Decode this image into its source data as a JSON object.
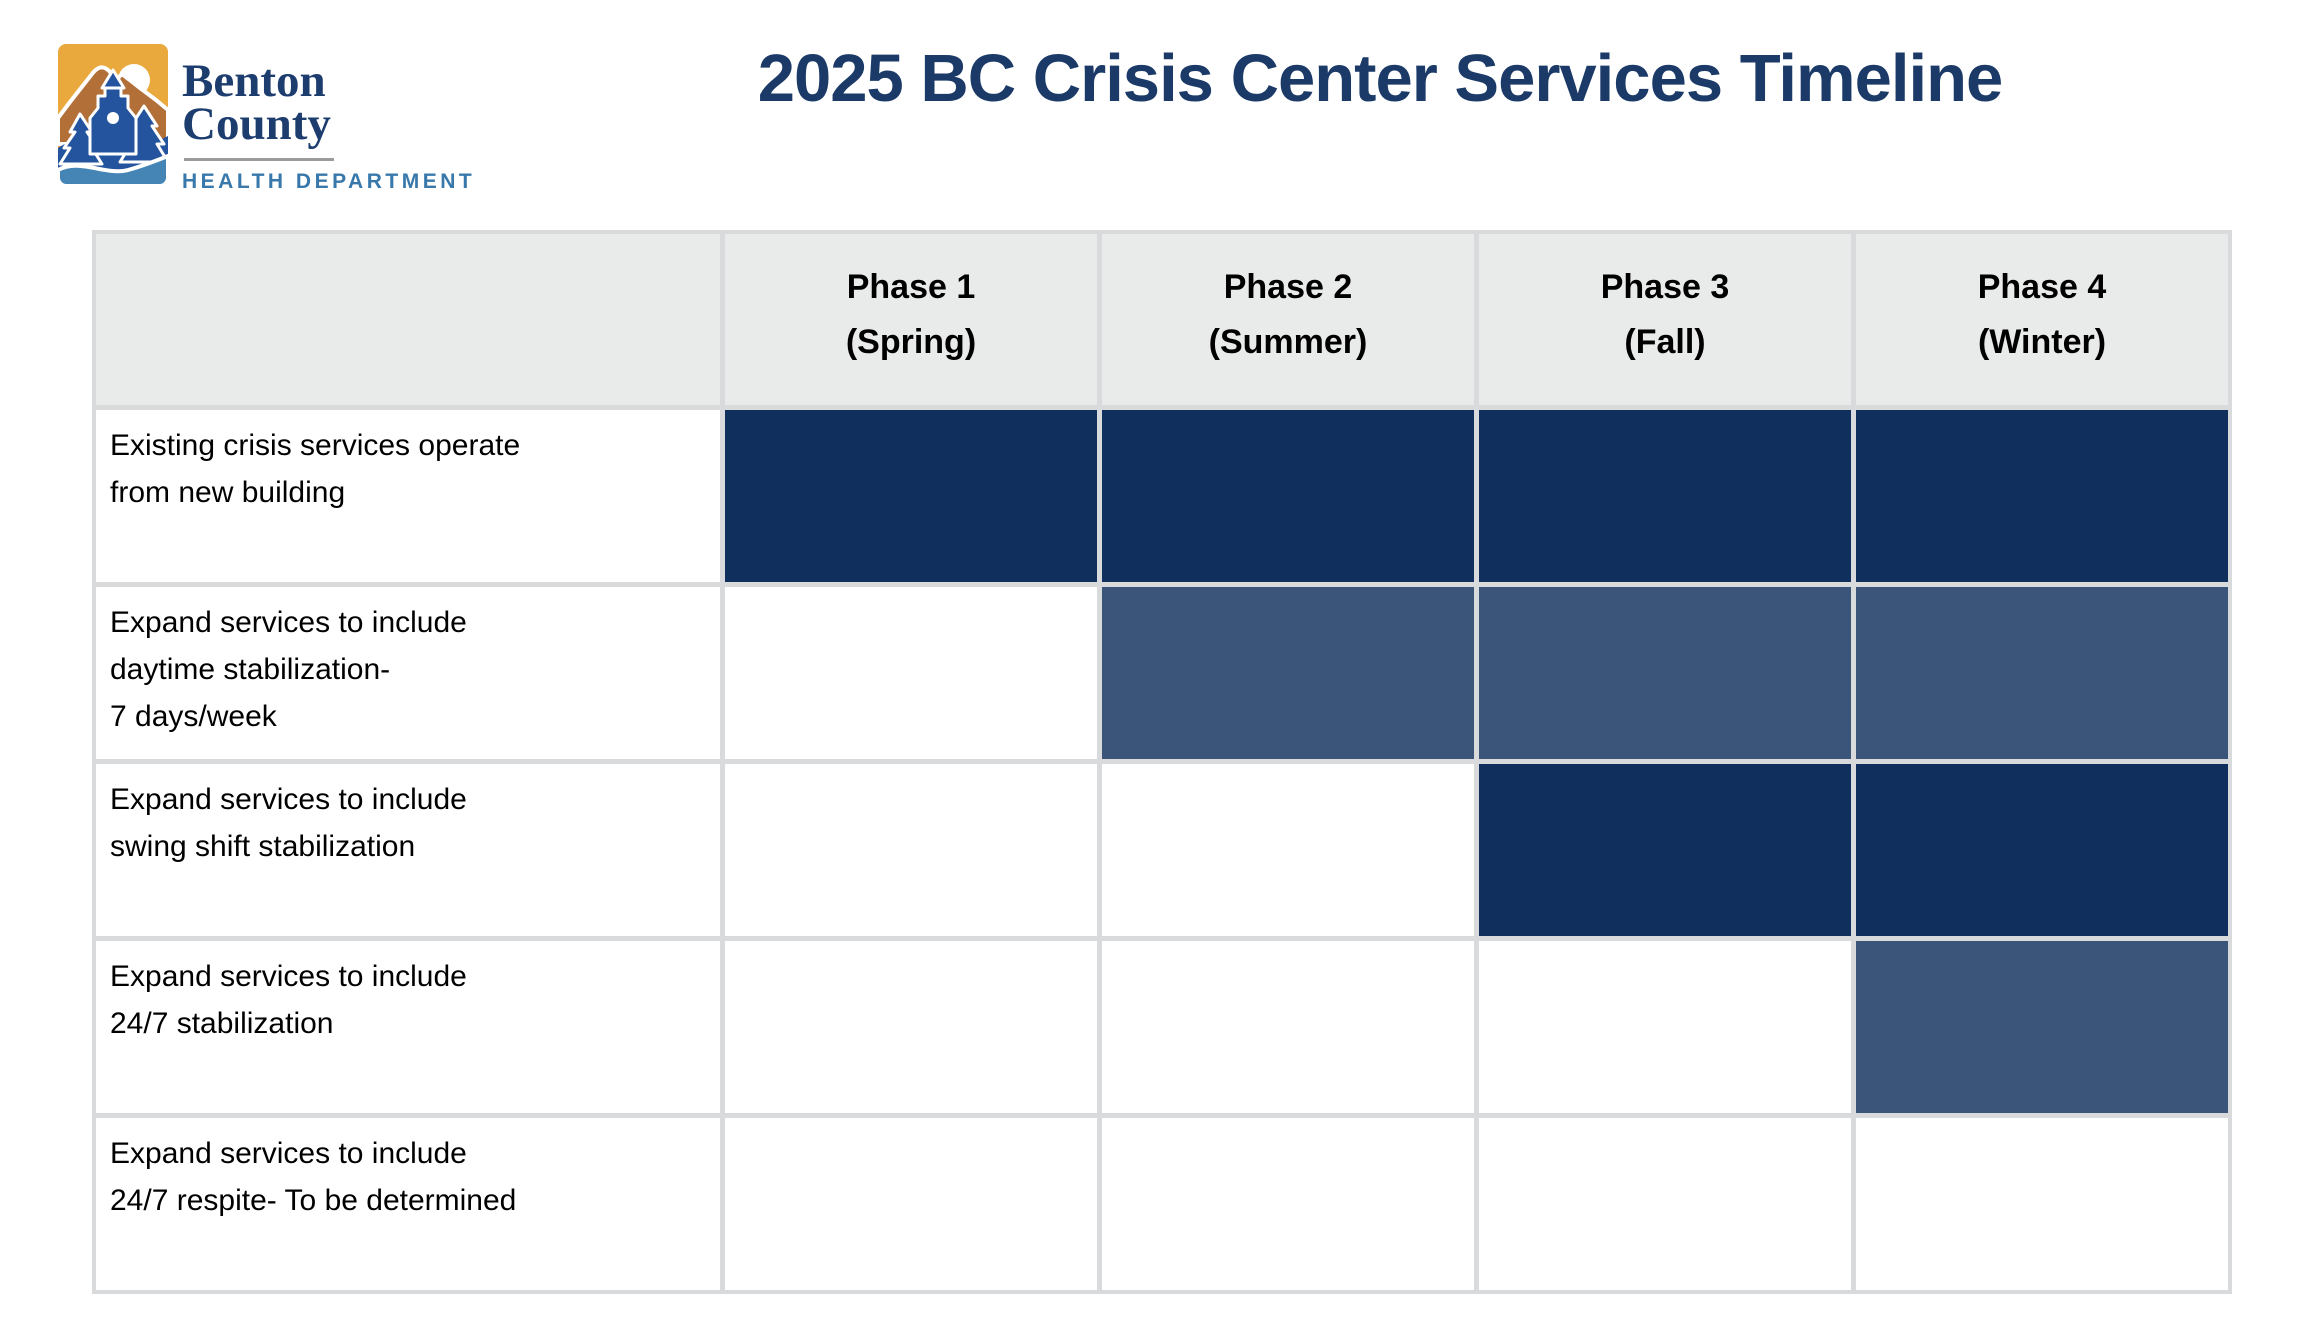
{
  "logo": {
    "name_line1": "Benton",
    "name_line2": "County",
    "department": "HEALTH DEPARTMENT"
  },
  "header": {
    "title": "2025 BC Crisis Center Services Timeline"
  },
  "table": {
    "columns": [
      {
        "line1": "Phase 1",
        "line2": "(Spring)"
      },
      {
        "line1": "Phase 2",
        "line2": "(Summer)"
      },
      {
        "line1": "Phase 3",
        "line2": "(Fall)"
      },
      {
        "line1": "Phase 4",
        "line2": "(Winter)"
      }
    ],
    "rows": [
      {
        "label_lines": [
          "Existing crisis services operate",
          "from new building"
        ],
        "fills": [
          "dark",
          "dark",
          "dark",
          "dark"
        ]
      },
      {
        "label_lines": [
          "Expand services to include",
          "daytime stabilization-",
          "7 days/week"
        ],
        "fills": [
          "none",
          "medium",
          "medium",
          "medium"
        ]
      },
      {
        "label_lines": [
          "Expand services to include",
          "swing shift stabilization"
        ],
        "fills": [
          "none",
          "none",
          "dark",
          "dark"
        ]
      },
      {
        "label_lines": [
          "Expand services to include",
          "24/7 stabilization"
        ],
        "fills": [
          "none",
          "none",
          "none",
          "medium"
        ]
      },
      {
        "label_lines": [
          "Expand services to include",
          "24/7 respite- To be determined"
        ],
        "fills": [
          "none",
          "none",
          "none",
          "none"
        ]
      }
    ]
  },
  "chart_data": {
    "type": "table",
    "title": "2025 BC Crisis Center Services Timeline",
    "categories": [
      "Phase 1 (Spring)",
      "Phase 2 (Summer)",
      "Phase 3 (Fall)",
      "Phase 4 (Winter)"
    ],
    "rows": [
      {
        "service": "Existing crisis services operate from new building",
        "active_phases": [
          1,
          2,
          3,
          4
        ],
        "fill_color": "#102f5d"
      },
      {
        "service": "Expand services to include daytime stabilization- 7 days/week",
        "active_phases": [
          2,
          3,
          4
        ],
        "fill_color": "#3b557a"
      },
      {
        "service": "Expand services to include swing shift stabilization",
        "active_phases": [
          3,
          4
        ],
        "fill_color": "#102f5d"
      },
      {
        "service": "Expand services to include 24/7 stabilization",
        "active_phases": [
          4
        ],
        "fill_color": "#3b557a"
      },
      {
        "service": "Expand services to include 24/7 respite- To be determined",
        "active_phases": [],
        "fill_color": "none"
      }
    ],
    "legend_position": "none",
    "grid": true
  },
  "colors": {
    "title_navy": "#1b3a68",
    "fill_dark_navy": "#102f5d",
    "fill_medium_blue": "#3b557a",
    "header_gray": "#e9eaea",
    "gridline_gray": "#d9dadb",
    "logo_gold": "#e9a93c",
    "logo_sienna": "#b26f38",
    "logo_tree_navy": "#24549e",
    "logo_wave_blue": "#4585b5",
    "logo_dept_blue": "#3878ab"
  }
}
